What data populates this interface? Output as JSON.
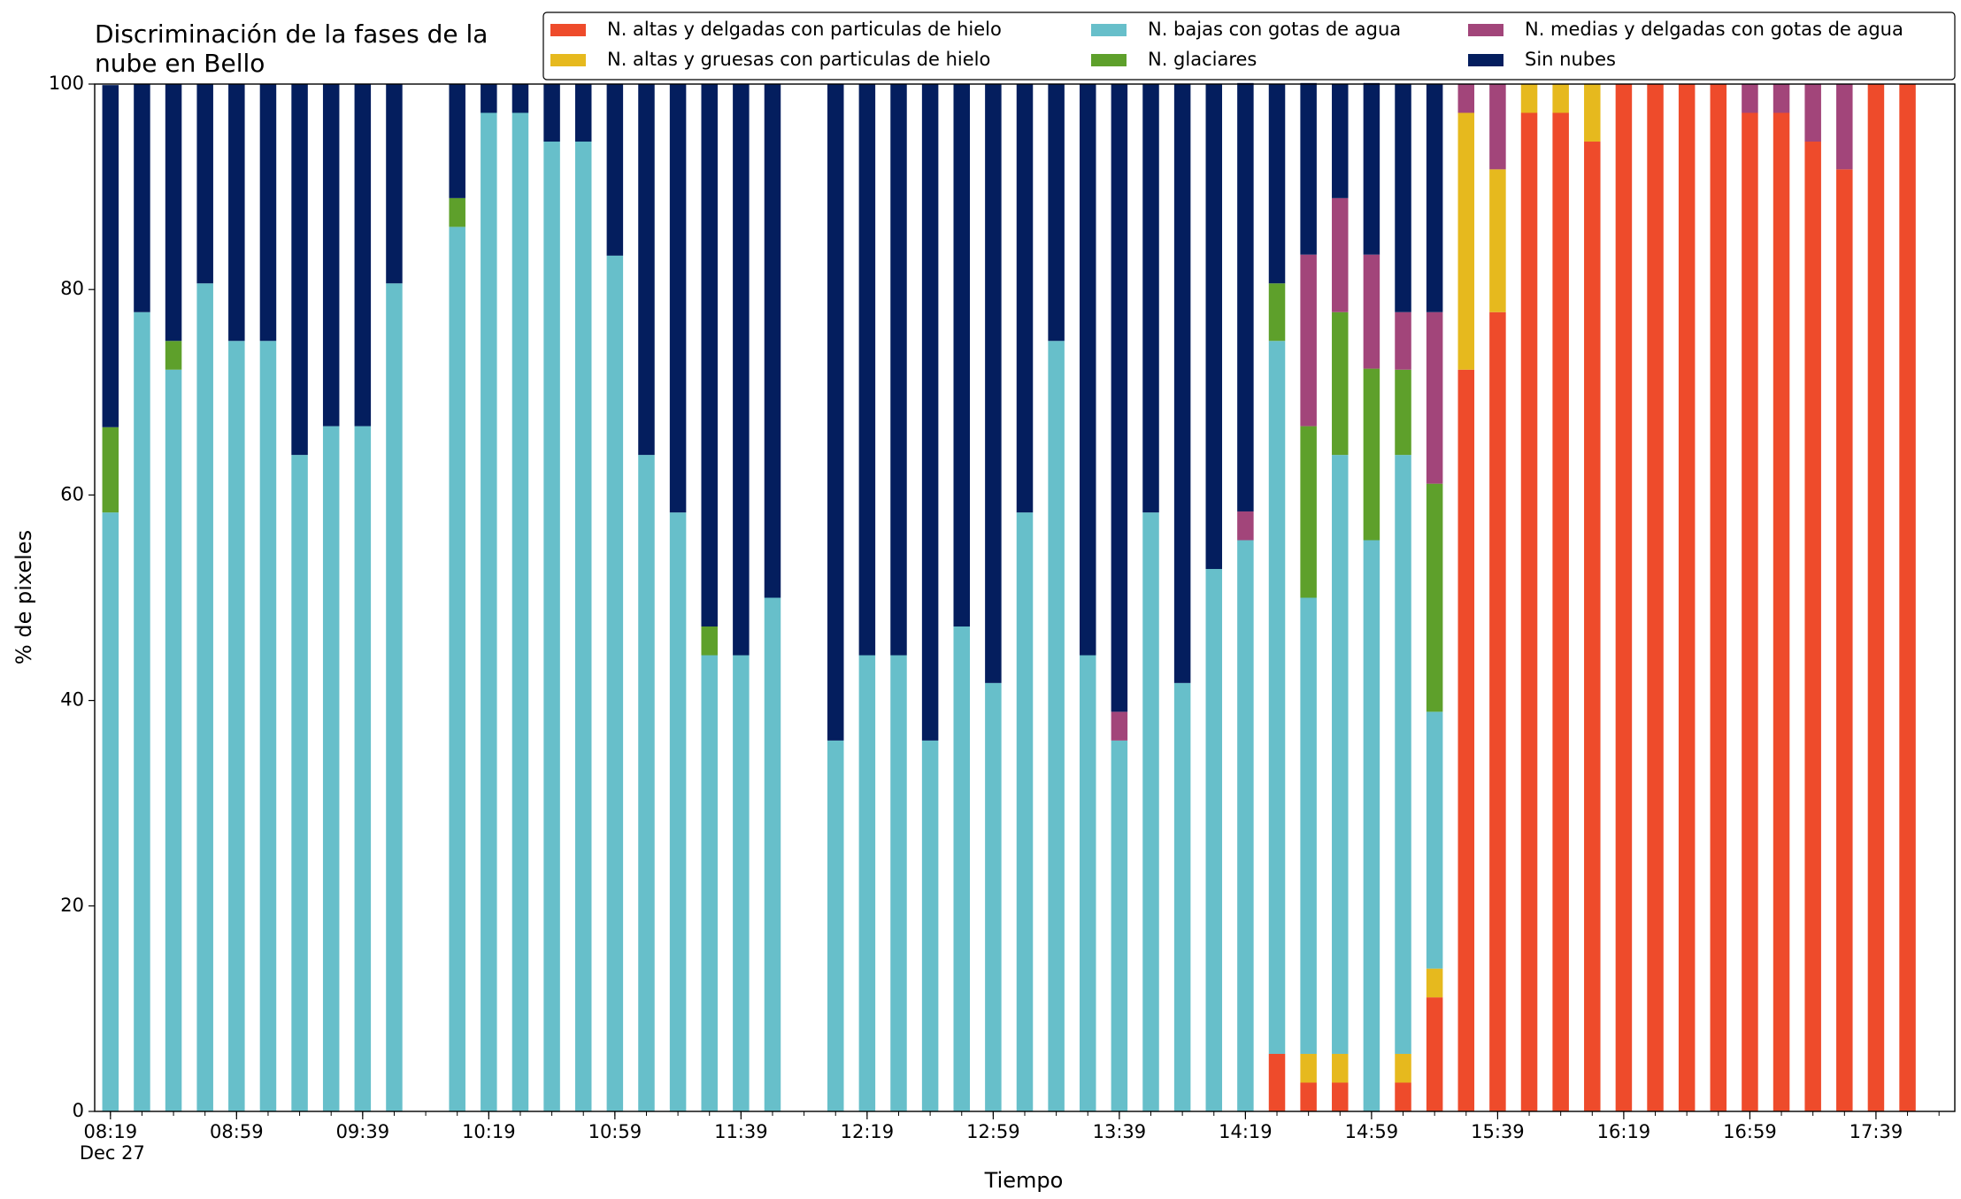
{
  "chart_data": {
    "type": "stacked_bar",
    "title": "Discriminación de la fases de la\nnube en Bello",
    "xlabel": "Tiempo",
    "ylabel": "% de pixeles",
    "x": [
      "08:19",
      "08:29",
      "08:39",
      "08:49",
      "08:59",
      "09:09",
      "09:19",
      "09:29",
      "09:39",
      "09:49",
      "10:09",
      "10:19",
      "10:29",
      "10:39",
      "10:49",
      "10:59",
      "11:09",
      "11:19",
      "11:29",
      "11:39",
      "11:49",
      "12:09",
      "12:19",
      "12:29",
      "12:39",
      "12:49",
      "12:59",
      "13:09",
      "13:19",
      "13:29",
      "13:39",
      "13:49",
      "13:59",
      "14:09",
      "14:19",
      "14:29",
      "14:39",
      "14:49",
      "14:59",
      "15:09",
      "15:19",
      "15:29",
      "15:39",
      "15:49",
      "15:59",
      "16:09",
      "16:19",
      "16:29",
      "16:39",
      "16:49",
      "16:59",
      "17:09",
      "17:19",
      "17:29",
      "17:39",
      "17:49"
    ],
    "series": [
      {
        "name": "N. altas y delgadas con particulas de hielo",
        "color": "#ee4b2b",
        "values": [
          0,
          0,
          0,
          0,
          0,
          0,
          0,
          0,
          0,
          0,
          0,
          0,
          0,
          0,
          0,
          0,
          0,
          0,
          0,
          0,
          0,
          0,
          0,
          0,
          0,
          0,
          0,
          0,
          0,
          0,
          0,
          0,
          0,
          0,
          0,
          5.6,
          2.8,
          2.8,
          0,
          2.8,
          11.1,
          72.2,
          77.8,
          97.2,
          97.2,
          94.4,
          100,
          100,
          100,
          100,
          97.2,
          97.2,
          94.4,
          91.7,
          100,
          100
        ]
      },
      {
        "name": "N. altas y gruesas con particulas de hielo",
        "color": "#e6b91e",
        "values": [
          0,
          0,
          0,
          0,
          0,
          0,
          0,
          0,
          0,
          0,
          0,
          0,
          0,
          0,
          0,
          0,
          0,
          0,
          0,
          0,
          0,
          0,
          0,
          0,
          0,
          0,
          0,
          0,
          0,
          0,
          0,
          0,
          0,
          0,
          0,
          0,
          2.8,
          2.8,
          0,
          2.8,
          2.8,
          25,
          13.9,
          2.8,
          2.8,
          5.6,
          0,
          0,
          0,
          0,
          0,
          0,
          0,
          0,
          0,
          0
        ]
      },
      {
        "name": "N. bajas con gotas de agua",
        "color": "#67bfca",
        "values": [
          58.3,
          77.8,
          72.2,
          80.6,
          75,
          75,
          63.9,
          66.7,
          66.7,
          80.6,
          86.1,
          97.2,
          97.2,
          94.4,
          94.4,
          83.3,
          63.9,
          58.3,
          44.4,
          44.4,
          50,
          36.1,
          44.4,
          44.4,
          36.1,
          47.2,
          41.7,
          58.3,
          75,
          44.4,
          36.1,
          58.3,
          41.7,
          52.8,
          55.6,
          69.4,
          44.4,
          58.3,
          55.6,
          58.3,
          25,
          0,
          0,
          0,
          0,
          0,
          0,
          0,
          0,
          0,
          0,
          0,
          0,
          0,
          0,
          0
        ]
      },
      {
        "name": "N. glaciares",
        "color": "#5ea02b",
        "values": [
          8.3,
          0,
          2.8,
          0,
          0,
          0,
          0,
          0,
          0,
          0,
          2.8,
          0,
          0,
          0,
          0,
          0,
          0,
          0,
          2.8,
          0,
          0,
          0,
          0,
          0,
          0,
          0,
          0,
          0,
          0,
          0,
          0,
          0,
          0,
          0,
          0,
          5.6,
          16.7,
          13.9,
          16.7,
          8.3,
          22.2,
          0,
          0,
          0,
          0,
          0,
          0,
          0,
          0,
          0,
          0,
          0,
          0,
          0,
          0,
          0
        ]
      },
      {
        "name": "N. medias y delgadas con gotas de agua",
        "color": "#a2457a",
        "values": [
          0,
          0,
          0,
          0,
          0,
          0,
          0,
          0,
          0,
          0,
          0,
          0,
          0,
          0,
          0,
          0,
          0,
          0,
          0,
          0,
          0,
          0,
          0,
          0,
          0,
          0,
          0,
          0,
          0,
          0,
          2.8,
          0,
          0,
          0,
          2.8,
          0,
          16.7,
          11.1,
          11.1,
          5.6,
          16.7,
          2.8,
          8.3,
          0,
          0,
          0,
          0,
          0,
          0,
          0,
          2.8,
          2.8,
          5.6,
          8.3,
          0,
          0
        ]
      },
      {
        "name": "Sin nubes",
        "color": "#041e5e",
        "values": [
          33.3,
          22.2,
          25,
          19.4,
          25,
          25,
          36.1,
          33.3,
          33.3,
          19.4,
          11.1,
          2.8,
          2.8,
          5.6,
          5.6,
          16.7,
          36.1,
          41.7,
          52.8,
          55.6,
          50,
          63.9,
          55.6,
          55.6,
          63.9,
          52.8,
          58.3,
          41.7,
          25,
          55.6,
          61.1,
          41.7,
          58.3,
          47.2,
          41.7,
          19.4,
          16.7,
          11.1,
          16.7,
          22.2,
          22.2,
          0,
          0,
          0,
          0,
          0,
          0,
          0,
          0,
          0,
          0,
          0,
          0,
          0,
          0,
          0
        ]
      }
    ],
    "xlim": [
      "08:14",
      "18:04"
    ],
    "xticks": [
      "08:19",
      "08:59",
      "09:39",
      "10:19",
      "10:59",
      "11:39",
      "12:19",
      "12:59",
      "13:39",
      "14:19",
      "14:59",
      "15:39",
      "16:19",
      "16:59",
      "17:39"
    ],
    "xtick_sublabel": "Dec 27",
    "xticks_minor": [
      "08:19",
      "08:29",
      "08:39",
      "08:49",
      "08:59",
      "09:09",
      "09:19",
      "09:29",
      "09:39",
      "09:49",
      "09:59",
      "10:09",
      "10:19",
      "10:29",
      "10:39",
      "10:49",
      "10:59",
      "11:09",
      "11:19",
      "11:29",
      "11:39",
      "11:49",
      "11:59",
      "12:09",
      "12:19",
      "12:29",
      "12:39",
      "12:49",
      "12:59",
      "13:09",
      "13:19",
      "13:29",
      "13:39",
      "13:49",
      "13:59",
      "14:09",
      "14:19",
      "14:29",
      "14:39",
      "14:49",
      "14:59",
      "15:09",
      "15:19",
      "15:29",
      "15:39",
      "15:49",
      "15:59",
      "16:09",
      "16:19",
      "16:29",
      "16:39",
      "16:49",
      "16:59",
      "17:09",
      "17:19",
      "17:29",
      "17:39",
      "17:49",
      "17:59"
    ],
    "ylim": [
      0,
      100
    ],
    "yticks": [
      0,
      20,
      40,
      60,
      80,
      100
    ],
    "grid": false,
    "legend": "upper right"
  }
}
